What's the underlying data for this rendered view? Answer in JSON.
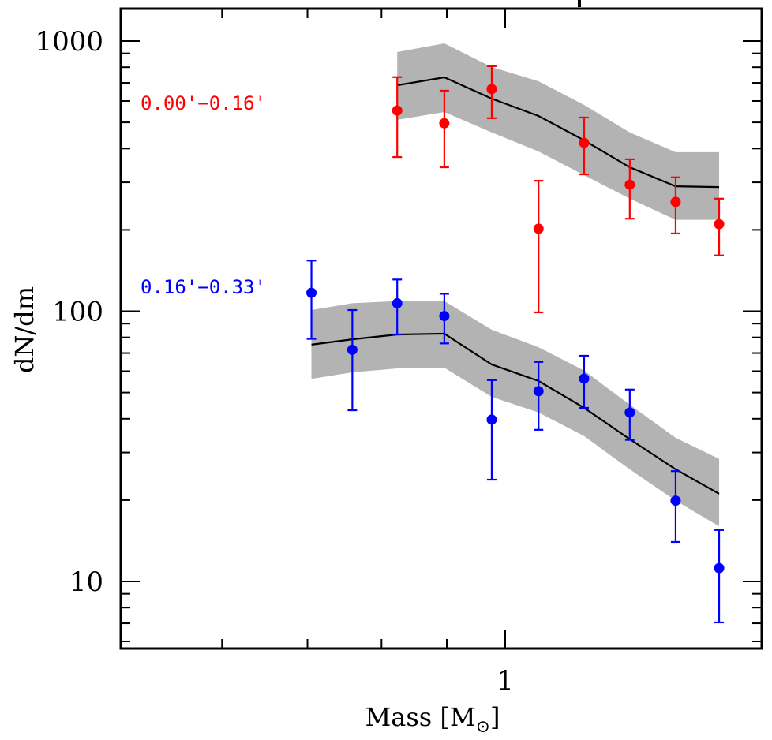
{
  "chart_data": {
    "type": "scatter",
    "title": "",
    "xlabel": "Mass [M☉]",
    "xlabel_main": "Mass [M",
    "xlabel_sub": "⊙",
    "xlabel_close": "]",
    "ylabel": "dN/dm",
    "xscale": "log",
    "yscale": "log",
    "xlim": [
      0.5,
      1.59
    ],
    "ylim": [
      5.65,
      1300
    ],
    "x_ticks_major": [
      {
        "value": 1,
        "label": "1"
      }
    ],
    "x_ticks_minor": [
      0.6,
      0.7,
      0.8,
      0.9
    ],
    "y_ticks_major": [
      {
        "value": 10,
        "label": "10"
      },
      {
        "value": 100,
        "label": "100"
      },
      {
        "value": 1000,
        "label": "1000"
      }
    ],
    "y_ticks_minor": [
      6,
      7,
      8,
      9,
      20,
      30,
      40,
      50,
      60,
      70,
      80,
      90,
      200,
      300,
      400,
      500,
      600,
      700,
      800,
      900
    ],
    "grid": false,
    "legend": "none",
    "series": [
      {
        "name": "0.00'−0.16'",
        "color": "#ff0000",
        "points": [
          {
            "x": 0.823,
            "y": 553,
            "ylo": 372,
            "yhi": 735
          },
          {
            "x": 0.896,
            "y": 496,
            "ylo": 341,
            "yhi": 655
          },
          {
            "x": 0.976,
            "y": 664,
            "ylo": 518,
            "yhi": 807
          },
          {
            "x": 1.062,
            "y": 202,
            "ylo": 99,
            "yhi": 304
          },
          {
            "x": 1.153,
            "y": 420,
            "ylo": 321,
            "yhi": 521
          },
          {
            "x": 1.252,
            "y": 294,
            "ylo": 220,
            "yhi": 365
          },
          {
            "x": 1.36,
            "y": 254,
            "ylo": 194,
            "yhi": 313
          },
          {
            "x": 1.471,
            "y": 210,
            "ylo": 161,
            "yhi": 261
          }
        ],
        "model": {
          "x": [
            0.823,
            0.896,
            0.976,
            1.062,
            1.153,
            1.252,
            1.36,
            1.471
          ],
          "y": [
            686,
            734,
            612,
            528,
            429,
            341,
            290,
            288
          ],
          "band_lo": [
            511,
            546,
            459,
            390,
            319,
            261,
            218,
            218
          ],
          "band_hi": [
            910,
            980,
            801,
            710,
            580,
            459,
            388,
            388
          ]
        }
      },
      {
        "name": "0.16'−0.33'",
        "color": "#0000ff",
        "points": [
          {
            "x": 0.705,
            "y": 117,
            "ylo": 79,
            "yhi": 154
          },
          {
            "x": 0.759,
            "y": 72,
            "ylo": 43,
            "yhi": 101
          },
          {
            "x": 0.823,
            "y": 107,
            "ylo": 82,
            "yhi": 131
          },
          {
            "x": 0.896,
            "y": 96,
            "ylo": 76,
            "yhi": 116
          },
          {
            "x": 0.976,
            "y": 39.7,
            "ylo": 23.8,
            "yhi": 55.6
          },
          {
            "x": 1.062,
            "y": 50.6,
            "ylo": 36.4,
            "yhi": 64.9
          },
          {
            "x": 1.153,
            "y": 56.3,
            "ylo": 43.9,
            "yhi": 68.4
          },
          {
            "x": 1.252,
            "y": 42.2,
            "ylo": 33.4,
            "yhi": 51.3
          },
          {
            "x": 1.36,
            "y": 19.9,
            "ylo": 14.0,
            "yhi": 25.6
          },
          {
            "x": 1.471,
            "y": 11.2,
            "ylo": 7.05,
            "yhi": 15.5
          }
        ],
        "model": {
          "x": [
            0.705,
            0.759,
            0.823,
            0.896,
            0.976,
            1.062,
            1.153,
            1.252,
            1.36,
            1.471
          ],
          "y": [
            75.2,
            78.7,
            82.0,
            82.6,
            63.5,
            55.2,
            43.9,
            33.6,
            26.0,
            21.1
          ],
          "band_lo": [
            56.2,
            59.4,
            61.4,
            61.8,
            48.2,
            42.2,
            34.5,
            26.0,
            19.9,
            16.0
          ],
          "band_hi": [
            101,
            107,
            109,
            109,
            85.4,
            73.6,
            60.3,
            45.1,
            34.0,
            28.4
          ]
        }
      }
    ],
    "annotations": [
      {
        "text": "0.00'−0.16'",
        "color": "#ff0000",
        "series": 0
      },
      {
        "text": "0.16'−0.33'",
        "color": "#0000ff",
        "series": 1
      }
    ],
    "band_color": "#b3b3b3",
    "model_line_color": "#000000"
  }
}
